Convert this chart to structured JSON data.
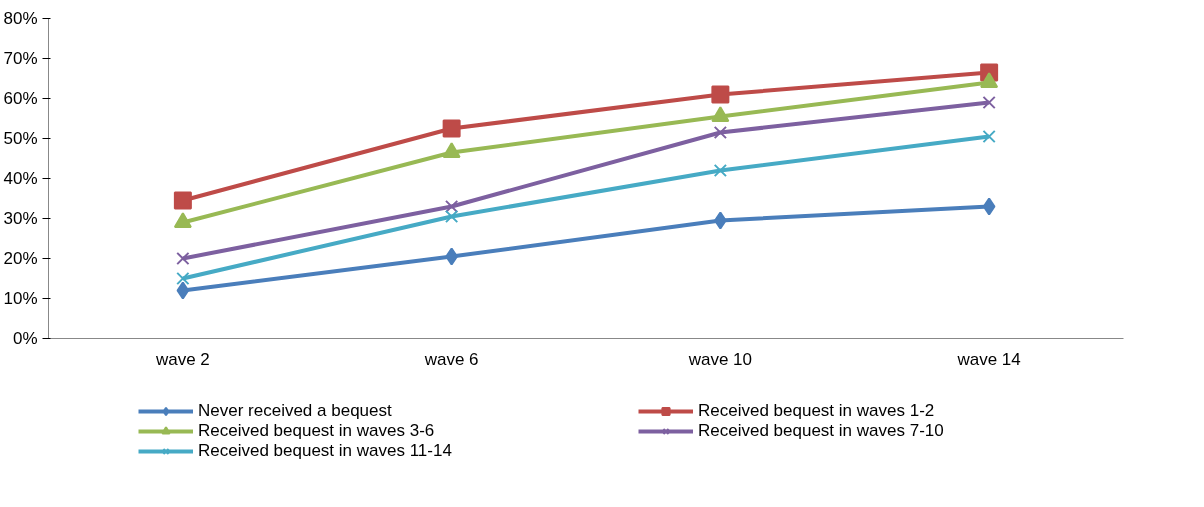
{
  "chart_data": {
    "type": "line",
    "categories": [
      "wave 2",
      "wave 6",
      "wave 10",
      "wave 14"
    ],
    "series": [
      {
        "name": "Never received a bequest",
        "color": "#4a7ebb",
        "marker": "diamond",
        "values": [
          12,
          20.5,
          29.5,
          33
        ]
      },
      {
        "name": "Received bequest in waves 1-2",
        "color": "#be4b48",
        "marker": "square",
        "values": [
          34.5,
          52.5,
          61,
          66.5
        ]
      },
      {
        "name": "Received bequest in waves 3-6",
        "color": "#98b954",
        "marker": "triangle",
        "values": [
          29,
          46.5,
          55.5,
          64
        ]
      },
      {
        "name": "Received bequest in waves 7-10",
        "color": "#7d60a0",
        "marker": "cross",
        "values": [
          20,
          33,
          51.5,
          59
        ]
      },
      {
        "name": "Received bequest in waves 11-14",
        "color": "#46aac5",
        "marker": "cross",
        "values": [
          15,
          30.5,
          42,
          50.5
        ]
      }
    ],
    "ylim": [
      0,
      80
    ],
    "yticks": [
      {
        "value": 0,
        "label": "0%"
      },
      {
        "value": 10,
        "label": "10%"
      },
      {
        "value": 20,
        "label": "20%"
      },
      {
        "value": 30,
        "label": "30%"
      },
      {
        "value": 40,
        "label": "40%"
      },
      {
        "value": 50,
        "label": "50%"
      },
      {
        "value": 60,
        "label": "60%"
      },
      {
        "value": 70,
        "label": "70%"
      },
      {
        "value": 80,
        "label": "80%"
      }
    ],
    "grid": false,
    "legend": "bottom"
  }
}
